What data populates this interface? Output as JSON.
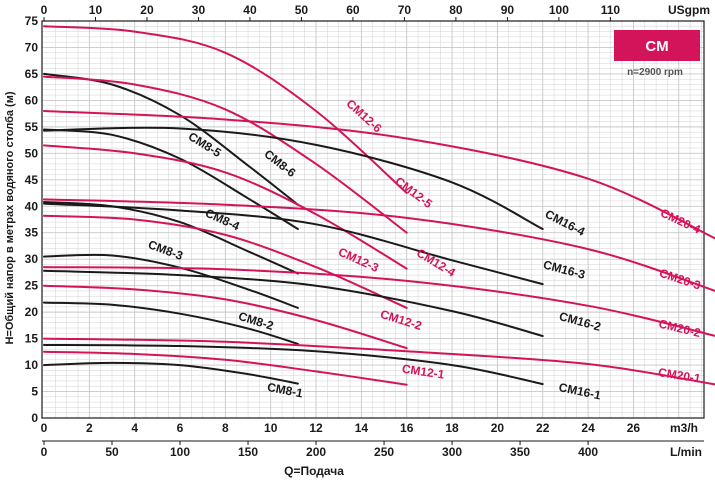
{
  "chart_data": {
    "type": "line",
    "badge": "CM",
    "speed_note": "n=2900 rpm",
    "xlabel": "Q=Подача",
    "ylabel": "H=Общий напор в метрах водяного столба (м)",
    "x_unit_m3h": "m3/h",
    "x_unit_lmin": "L/min",
    "x_unit_usgpm": "USgpm",
    "xlim_m3h": [
      0,
      30
    ],
    "ylim": [
      0,
      75
    ],
    "x_ticks_m3h": [
      0,
      2,
      4,
      6,
      8,
      10,
      12,
      14,
      16,
      18,
      20,
      22,
      24,
      26
    ],
    "x_ticks_lmin": [
      0,
      50,
      100,
      150,
      200,
      250,
      300,
      350,
      400
    ],
    "x_ticks_usgpm": [
      0,
      10,
      20,
      30,
      40,
      50,
      60,
      70,
      80,
      90,
      100,
      110
    ],
    "y_ticks": [
      0,
      5,
      10,
      15,
      20,
      25,
      30,
      35,
      40,
      45,
      50,
      55,
      60,
      65,
      70,
      75
    ],
    "colors": {
      "black_series": "#1a1a1a",
      "red_series": "#d4145a",
      "grid": "#c8c8c8",
      "badge_bg": "#d4145a"
    },
    "series": [
      {
        "name": "CM8-1",
        "color": "black",
        "x": [
          0,
          3,
          6,
          9,
          11.2
        ],
        "y": [
          10,
          10.4,
          10,
          8.3,
          6.5
        ],
        "label_x": 10.6,
        "label_y": 4.5
      },
      {
        "name": "CM8-2",
        "color": "black",
        "x": [
          0,
          3,
          6,
          9,
          11.2
        ],
        "y": [
          21.8,
          21.4,
          19.7,
          16.9,
          14
        ],
        "label_x": 9.3,
        "label_y": 17.6
      },
      {
        "name": "CM8-3",
        "color": "black",
        "x": [
          0,
          3,
          6,
          9,
          11.2
        ],
        "y": [
          30.5,
          30.7,
          28.4,
          24.3,
          20.8
        ],
        "label_x": 5.3,
        "label_y": 31
      },
      {
        "name": "CM8-4",
        "color": "black",
        "x": [
          0,
          3,
          6,
          9,
          11.2
        ],
        "y": [
          40.8,
          40,
          37,
          31.5,
          27.3
        ],
        "label_x": 7.8,
        "label_y": 36.8
      },
      {
        "name": "CM8-5",
        "color": "black",
        "x": [
          0,
          3,
          6,
          9,
          11.2
        ],
        "y": [
          54.5,
          53.5,
          49,
          41.5,
          35.7
        ],
        "label_x": 7.0,
        "label_y": 51
      },
      {
        "name": "CM8-6",
        "color": "black",
        "x": [
          0,
          3,
          6,
          9,
          11.2
        ],
        "y": [
          65,
          63,
          57.2,
          47.7,
          40.3
        ],
        "label_x": 10.3,
        "label_y": 47.5
      },
      {
        "name": "CM12-1",
        "color": "red",
        "x": [
          0,
          4,
          8,
          12,
          16
        ],
        "y": [
          12.5,
          12.1,
          11,
          8.8,
          6.3
        ],
        "label_x": 16.7,
        "label_y": 8
      },
      {
        "name": "CM12-2",
        "color": "red",
        "x": [
          0,
          4,
          8,
          12,
          16
        ],
        "y": [
          25,
          24.3,
          22.4,
          18.5,
          13.2
        ],
        "label_x": 15.7,
        "label_y": 17.8
      },
      {
        "name": "CM12-3",
        "color": "red",
        "x": [
          0,
          4,
          8,
          12,
          16
        ],
        "y": [
          38.2,
          37.5,
          34.6,
          28.5,
          20.8
        ],
        "label_x": 13.8,
        "label_y": 29.2
      },
      {
        "name": "CM12-4",
        "color": "red",
        "x": [
          0,
          4,
          8,
          12,
          16
        ],
        "y": [
          51.5,
          50,
          46.4,
          38.5,
          28.2
        ],
        "label_x": 17.2,
        "label_y": 28.7
      },
      {
        "name": "CM12-5",
        "color": "red",
        "x": [
          0,
          4,
          8,
          12,
          16
        ],
        "y": [
          64.5,
          63,
          58.3,
          48,
          35
        ],
        "label_x": 16.2,
        "label_y": 42
      },
      {
        "name": "CM12-6",
        "color": "red",
        "x": [
          0,
          4,
          8,
          12,
          16
        ],
        "y": [
          74,
          73,
          69,
          58,
          42.5
        ],
        "label_x": 14.0,
        "label_y": 56.5
      },
      {
        "name": "CM16-1",
        "color": "black",
        "x": [
          0,
          6,
          12,
          18,
          22
        ],
        "y": [
          13.8,
          13.6,
          12.6,
          10,
          6.4
        ],
        "label_x": 23.6,
        "label_y": 4.3
      },
      {
        "name": "CM16-2",
        "color": "black",
        "x": [
          0,
          6,
          12,
          18,
          22
        ],
        "y": [
          27.8,
          27,
          25,
          20.2,
          15.5
        ],
        "label_x": 23.6,
        "label_y": 17.5
      },
      {
        "name": "CM16-3",
        "color": "black",
        "x": [
          0,
          6,
          12,
          18,
          22
        ],
        "y": [
          40.5,
          39.2,
          36.6,
          29.8,
          25.3
        ],
        "label_x": 22.9,
        "label_y": 27.3
      },
      {
        "name": "CM16-4",
        "color": "black",
        "x": [
          0,
          6,
          12,
          18,
          22
        ],
        "y": [
          54.3,
          54.7,
          51.6,
          44.5,
          35.7
        ],
        "label_x": 22.9,
        "label_y": 36.2
      },
      {
        "name": "CM20-1",
        "color": "red",
        "x": [
          0,
          8,
          16,
          24,
          29.8
        ],
        "y": [
          15,
          14.4,
          12.6,
          10.2,
          6.2
        ],
        "label_x": 28.0,
        "label_y": 7.3
      },
      {
        "name": "CM20-2",
        "color": "red",
        "x": [
          0,
          8,
          16,
          24,
          29.8
        ],
        "y": [
          28.5,
          28.1,
          25.9,
          21.2,
          15.3
        ],
        "label_x": 28.0,
        "label_y": 16.2
      },
      {
        "name": "CM20-3",
        "color": "red",
        "x": [
          0,
          8,
          16,
          24,
          29.8
        ],
        "y": [
          41.3,
          40.3,
          37.8,
          31.9,
          23.7
        ],
        "label_x": 28.0,
        "label_y": 25.5
      },
      {
        "name": "CM20-4",
        "color": "red",
        "x": [
          0,
          8,
          16,
          24,
          29.8
        ],
        "y": [
          58,
          56.4,
          52.8,
          45.2,
          33.5
        ],
        "label_x": 28.0,
        "label_y": 36.5
      }
    ]
  }
}
